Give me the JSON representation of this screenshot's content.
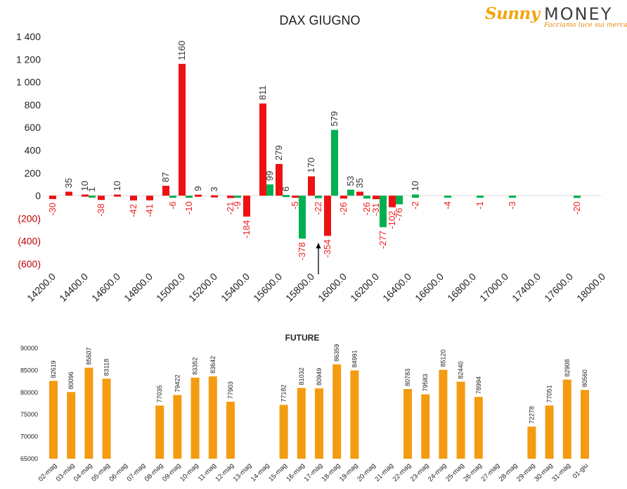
{
  "brand": {
    "name_left": "Sunny",
    "name_right": "MONEY",
    "tagline": "Facciamo luce sui mercati",
    "color_sunny": "#f4a40c",
    "color_money": "#3d3d3d"
  },
  "chart_data": [
    {
      "type": "bar",
      "title": "DAX GIUGNO",
      "xlabel": "",
      "ylabel": "",
      "ylim": [
        -600,
        1400
      ],
      "xlim": [
        14200,
        18000
      ],
      "grid": false,
      "legend": "none",
      "y_ticks": [
        "1 400",
        "1 200",
        "1 000",
        "800",
        "600",
        "400",
        "200",
        "0",
        "(200)",
        "(400)",
        "(600)"
      ],
      "y_tick_values": [
        1400,
        1200,
        1000,
        800,
        600,
        400,
        200,
        0,
        -200,
        -400,
        -600
      ],
      "negative_tick_color": "#c00000",
      "x_ticks": [
        "14200.0",
        "14400.0",
        "14600.0",
        "14800.0",
        "15000.0",
        "15200.0",
        "15400.0",
        "15600.0",
        "15800.0",
        "16000.0",
        "16200.0",
        "16400.0",
        "16600.0",
        "16800.0",
        "17000.0",
        "17400.0",
        "17600.0",
        "18000.0"
      ],
      "colors": {
        "call": "#ee1111",
        "put": "#00b050",
        "positive_label": "#333333",
        "negative_label": "#ee2222"
      },
      "series": [
        {
          "name": "",
          "color": "#ee1111",
          "points": [
            {
              "x": 14200,
              "y": -30
            },
            {
              "x": 14300,
              "y": 35
            },
            {
              "x": 14400,
              "y": 10
            },
            {
              "x": 14500,
              "y": -38
            },
            {
              "x": 14600,
              "y": 10
            },
            {
              "x": 14700,
              "y": -42
            },
            {
              "x": 14800,
              "y": -41
            },
            {
              "x": 14900,
              "y": 87
            },
            {
              "x": 15000,
              "y": 1160
            },
            {
              "x": 15100,
              "y": 9
            },
            {
              "x": 15200,
              "y": 3
            },
            {
              "x": 15300,
              "y": -21
            },
            {
              "x": 15400,
              "y": -184
            },
            {
              "x": 15500,
              "y": 811
            },
            {
              "x": 15600,
              "y": 279
            },
            {
              "x": 15700,
              "y": -5
            },
            {
              "x": 15800,
              "y": 170
            },
            {
              "x": 15900,
              "y": -354
            },
            {
              "x": 16000,
              "y": -26
            },
            {
              "x": 16100,
              "y": 35
            },
            {
              "x": 16200,
              "y": -31
            },
            {
              "x": 16300,
              "y": -102
            }
          ]
        },
        {
          "name": "",
          "color": "#00b050",
          "points": [
            {
              "x": 14400,
              "y": 1
            },
            {
              "x": 14900,
              "y": -6
            },
            {
              "x": 15000,
              "y": -10
            },
            {
              "x": 15300,
              "y": -9
            },
            {
              "x": 15500,
              "y": 99
            },
            {
              "x": 15600,
              "y": 6
            },
            {
              "x": 15700,
              "y": -378
            },
            {
              "x": 15800,
              "y": -22
            },
            {
              "x": 15900,
              "y": 579
            },
            {
              "x": 16000,
              "y": 53
            },
            {
              "x": 16100,
              "y": -26
            },
            {
              "x": 16200,
              "y": -277
            },
            {
              "x": 16300,
              "y": -76
            },
            {
              "x": 16400,
              "y": -2
            },
            {
              "x": 16400,
              "y": 10
            },
            {
              "x": 16600,
              "y": -4
            },
            {
              "x": 16800,
              "y": -1
            },
            {
              "x": 17000,
              "y": -3
            },
            {
              "x": 17400,
              "y": -20
            }
          ]
        }
      ],
      "annotation": {
        "type": "arrow",
        "at_x": 15850,
        "direction": "up"
      }
    },
    {
      "type": "bar",
      "title": "FUTURE",
      "xlabel": "",
      "ylabel": "",
      "ylim": [
        65000,
        90000
      ],
      "grid": false,
      "legend": "none",
      "color": "#f39c12",
      "y_ticks": [
        "90000",
        "85000",
        "80000",
        "75000",
        "70000",
        "65000"
      ],
      "y_tick_values": [
        90000,
        85000,
        80000,
        75000,
        70000,
        65000
      ],
      "categories": [
        "02-mag",
        "03-mag",
        "04-mag",
        "05-mag",
        "06-mag",
        "07-mag",
        "08-mag",
        "09-mag",
        "10-mag",
        "11-mag",
        "12-mag",
        "13-mag",
        "14-mag",
        "15-mag",
        "16-mag",
        "17-mag",
        "18-mag",
        "19-mag",
        "20-mag",
        "21-mag",
        "22-mag",
        "23-mag",
        "24-mag",
        "25-mag",
        "26-mag",
        "27-mag",
        "28-mag",
        "29-mag",
        "30-mag",
        "31-mag",
        "01-giu"
      ],
      "values": [
        82619,
        80096,
        85607,
        83118,
        null,
        null,
        77035,
        79422,
        83352,
        83642,
        77903,
        null,
        null,
        77182,
        81032,
        80949,
        86359,
        84991,
        null,
        null,
        80783,
        79583,
        85120,
        82440,
        78994,
        null,
        null,
        72278,
        77051,
        82908,
        80560
      ]
    }
  ]
}
